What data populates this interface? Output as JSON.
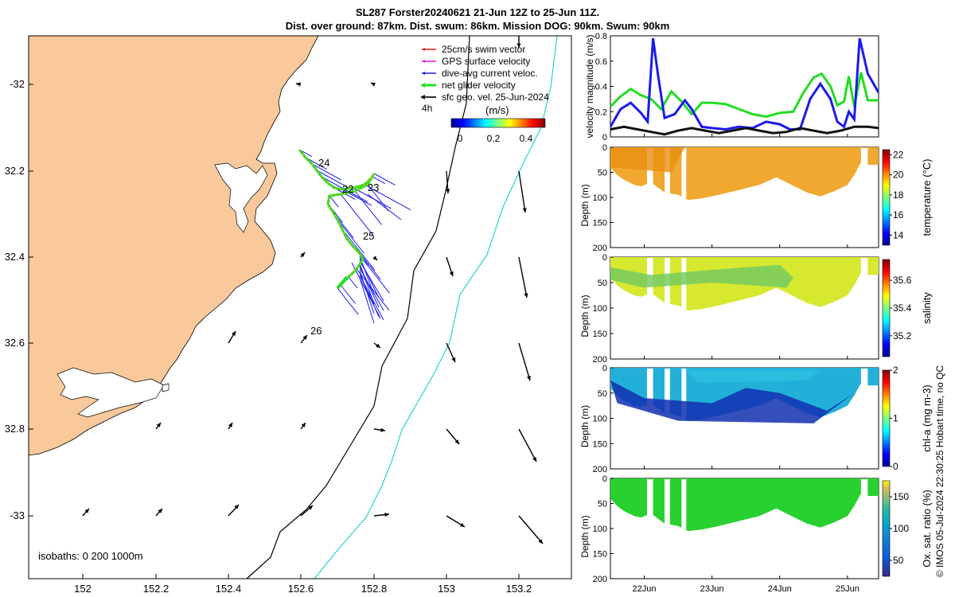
{
  "title_line1": "SL287 Forster20240621 21-Jun 12Z to 25-Jun 11Z.",
  "title_line2": "Dist. over ground: 87km. Dist. swum: 86km. Mission DOG: 90km. Swum: 90km",
  "map": {
    "x_ticks": [
      "152",
      "152.2",
      "152.4",
      "152.6",
      "152.8",
      "153",
      "153.2"
    ],
    "y_ticks": [
      "-32",
      "32.2",
      "32.4",
      "32.6",
      "32.8",
      "-33"
    ],
    "legend": [
      {
        "label": "25cm/s swim vector",
        "color": "#e02020"
      },
      {
        "label": "GPS surface velocity",
        "color": "#e020e0"
      },
      {
        "label": "dive-avg current veloc.",
        "color": "#1a1aee"
      },
      {
        "label": "net glider velocity",
        "color": "#22dd22"
      },
      {
        "label": "sfc geo. vel. 25-Jun-2024",
        "color": "#111111"
      }
    ],
    "legend_4h": "4h",
    "colorbar_label": "(m/s)",
    "colorbar_ticks": [
      "0",
      "0.2",
      "0.4"
    ],
    "day_labels": [
      "24",
      "22",
      "23",
      "25",
      "26"
    ],
    "isobaths_label": "isobaths: 0   200  1000m",
    "land_color": "#f9c99b"
  },
  "chart_data": [
    {
      "type": "line",
      "title": "velocity magnitude",
      "ylabel": "velocity magnitude (m/s)",
      "ylim": [
        0,
        0.8
      ],
      "y_ticks": [
        "0",
        "0.2",
        "0.4",
        "0.6",
        "0.8"
      ],
      "x_range_days": [
        21.5,
        25.46
      ],
      "series": [
        {
          "name": "net glider velocity",
          "color": "#22dd22",
          "x": [
            21.5,
            21.65,
            21.8,
            21.95,
            22.1,
            22.25,
            22.4,
            22.55,
            22.7,
            22.85,
            23.0,
            23.2,
            23.4,
            23.6,
            23.8,
            24.0,
            24.2,
            24.35,
            24.5,
            24.62,
            24.75,
            24.85,
            24.95,
            25.02,
            25.1,
            25.2,
            25.3,
            25.46
          ],
          "y": [
            0.24,
            0.32,
            0.38,
            0.33,
            0.3,
            0.22,
            0.36,
            0.28,
            0.18,
            0.27,
            0.27,
            0.26,
            0.22,
            0.18,
            0.16,
            0.19,
            0.2,
            0.35,
            0.47,
            0.5,
            0.4,
            0.25,
            0.28,
            0.48,
            0.24,
            0.51,
            0.29,
            0.29
          ]
        },
        {
          "name": "dive-avg current veloc.",
          "color": "#1a1aee",
          "x": [
            21.5,
            21.65,
            21.8,
            21.95,
            22.05,
            22.13,
            22.2,
            22.3,
            22.45,
            22.6,
            22.7,
            22.85,
            23.0,
            23.2,
            23.4,
            23.6,
            23.8,
            24.0,
            24.15,
            24.3,
            24.45,
            24.6,
            24.75,
            24.85,
            24.95,
            25.02,
            25.1,
            25.18,
            25.3,
            25.46
          ],
          "y": [
            0.08,
            0.22,
            0.27,
            0.19,
            0.12,
            0.78,
            0.5,
            0.15,
            0.18,
            0.29,
            0.22,
            0.08,
            0.07,
            0.06,
            0.08,
            0.07,
            0.12,
            0.1,
            0.06,
            0.06,
            0.3,
            0.42,
            0.3,
            0.12,
            0.08,
            0.2,
            0.14,
            0.78,
            0.5,
            0.35
          ]
        },
        {
          "name": "sfc geo. vel.",
          "color": "#111111",
          "x": [
            21.5,
            21.7,
            21.9,
            22.1,
            22.3,
            22.5,
            22.7,
            22.9,
            23.1,
            23.3,
            23.5,
            23.7,
            23.9,
            24.1,
            24.3,
            24.5,
            24.7,
            24.9,
            25.1,
            25.3,
            25.46
          ],
          "y": [
            0.06,
            0.08,
            0.06,
            0.04,
            0.02,
            0.05,
            0.07,
            0.05,
            0.03,
            0.05,
            0.07,
            0.05,
            0.03,
            0.04,
            0.07,
            0.05,
            0.03,
            0.05,
            0.08,
            0.08,
            0.07
          ]
        }
      ]
    },
    {
      "type": "heatmap",
      "variable": "temperature",
      "colorbar_label": "temperature (°C)",
      "ylabel": "Depth (m)",
      "ylim": [
        200,
        0
      ],
      "y_ticks": [
        "0",
        "50",
        "100",
        "150",
        "200"
      ],
      "clim": [
        13,
        22.5
      ],
      "colorbar_ticks": [
        "14",
        "16",
        "18",
        "20",
        "22"
      ],
      "typical_value": 20.5
    },
    {
      "type": "heatmap",
      "variable": "salinity",
      "colorbar_label": "salinity",
      "ylabel": "Depth (m)",
      "ylim": [
        200,
        0
      ],
      "y_ticks": [
        "0",
        "50",
        "100",
        "150",
        "200"
      ],
      "clim": [
        35.05,
        35.75
      ],
      "colorbar_ticks": [
        "35.2",
        "35.4",
        "35.6"
      ],
      "typical_value": 35.45
    },
    {
      "type": "heatmap",
      "variable": "chl-a",
      "colorbar_label": "chl-a (mg m-3)",
      "ylabel": "Depth (m)",
      "ylim": [
        200,
        0
      ],
      "y_ticks": [
        "0",
        "50",
        "100",
        "150",
        "200"
      ],
      "clim": [
        0,
        2
      ],
      "colorbar_ticks": [
        "0",
        "1",
        "2"
      ],
      "typical_value": 0.9
    },
    {
      "type": "heatmap",
      "variable": "oxygen saturation",
      "colorbar_label": "Ox. sat. ratio (%)",
      "ylabel": "Depth (m)",
      "ylim": [
        200,
        0
      ],
      "y_ticks": [
        "0",
        "50",
        "100",
        "150",
        "200"
      ],
      "clim": [
        25,
        175
      ],
      "colorbar_ticks": [
        "50",
        "100",
        "150"
      ],
      "typical_value": 100
    },
    {
      "type": "axis",
      "x_ticks": [
        "22Jun",
        "23Jun",
        "24Jun",
        "25Jun"
      ],
      "x_tick_days": [
        22,
        23,
        24,
        25
      ]
    }
  ],
  "credit": "© IMOS 05-Jul-2024 22:30:25 Hobart time, no QC"
}
